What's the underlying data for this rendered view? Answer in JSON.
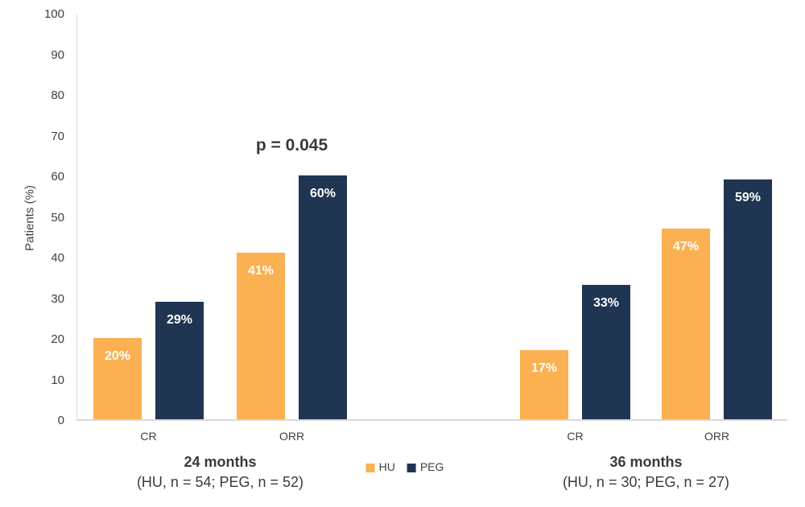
{
  "chart_data": {
    "type": "bar",
    "title": "",
    "ylabel": "Patients (%)",
    "xlabel": "",
    "ylim": [
      0,
      100
    ],
    "yticks": [
      0,
      10,
      20,
      30,
      40,
      50,
      60,
      70,
      80,
      90,
      100
    ],
    "grid": false,
    "legend_position": "bottom-center",
    "axis_color": "#D9D9D9",
    "bar_label_color": "#FFFFFF",
    "series": [
      {
        "name": "HU",
        "color": "#FBB052"
      },
      {
        "name": "PEG",
        "color": "#203552"
      }
    ],
    "groups": [
      {
        "title": "24 months",
        "subtitle": "(HU, n = 54; PEG, n = 52)",
        "clusters": [
          {
            "category": "CR",
            "bars": [
              {
                "series": "HU",
                "value": 20,
                "label": "20%"
              },
              {
                "series": "PEG",
                "value": 29,
                "label": "29%"
              }
            ]
          },
          {
            "category": "ORR",
            "annotation": "p = 0.045",
            "bars": [
              {
                "series": "HU",
                "value": 41,
                "label": "41%"
              },
              {
                "series": "PEG",
                "value": 60,
                "label": "60%"
              }
            ]
          }
        ]
      },
      {
        "title": "36 months",
        "subtitle": "(HU, n = 30; PEG, n = 27)",
        "clusters": [
          {
            "category": "CR",
            "bars": [
              {
                "series": "HU",
                "value": 17,
                "label": "17%"
              },
              {
                "series": "PEG",
                "value": 33,
                "label": "33%"
              }
            ]
          },
          {
            "category": "ORR",
            "bars": [
              {
                "series": "HU",
                "value": 47,
                "label": "47%"
              },
              {
                "series": "PEG",
                "value": 59,
                "label": "59%"
              }
            ]
          }
        ]
      }
    ]
  }
}
